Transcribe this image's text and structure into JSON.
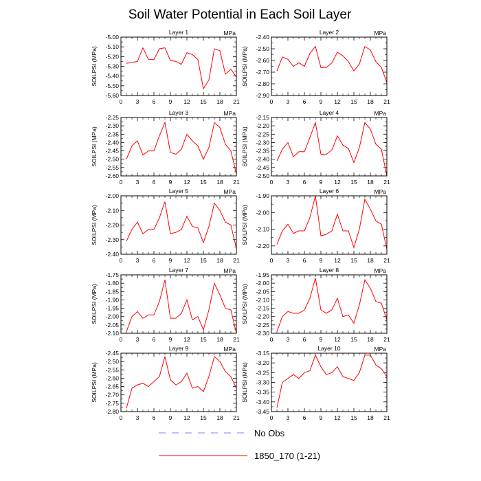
{
  "title": "Soil Water Potential in Each Soil Layer",
  "legend": {
    "no_obs_label": "No Obs",
    "no_obs_color": "#8080ff",
    "series_label": "1850_170 (1-21)",
    "series_color": "#ff0000"
  },
  "chart_data": [
    {
      "type": "line",
      "title": "Layer 1",
      "units": "MPa",
      "ylabel": "SOILPSI  (MPa)",
      "xlim": [
        0,
        21
      ],
      "x_ticks": [
        0,
        3,
        6,
        9,
        12,
        15,
        18,
        21
      ],
      "ylim": [
        -5.6,
        -5.0
      ],
      "y_ticks": [
        -5.0,
        -5.1,
        -5.2,
        -5.3,
        -5.4,
        -5.5,
        -5.6
      ],
      "y_tick_labels": [
        "-5.00",
        "-5.10",
        "-5.20",
        "-5.30",
        "-5.40",
        "-5.50",
        "-5.60"
      ],
      "x": [
        1,
        2,
        3,
        4,
        5,
        6,
        7,
        8,
        9,
        10,
        11,
        12,
        13,
        14,
        15,
        16,
        17,
        18,
        19,
        20,
        21
      ],
      "series": [
        {
          "name": "1850_170 (1-21)",
          "values": [
            -5.27,
            -5.26,
            -5.25,
            -5.11,
            -5.23,
            -5.23,
            -5.12,
            -5.11,
            -5.24,
            -5.25,
            -5.28,
            -5.16,
            -5.18,
            -5.23,
            -5.53,
            -5.44,
            -5.12,
            -5.14,
            -5.38,
            -5.33,
            -5.41
          ]
        }
      ]
    },
    {
      "type": "line",
      "title": "Layer 2",
      "units": "MPa",
      "ylabel": "SOILPSI  (MPa)",
      "xlim": [
        0,
        21
      ],
      "x_ticks": [
        0,
        3,
        6,
        9,
        12,
        15,
        18,
        21
      ],
      "ylim": [
        -2.9,
        -2.4
      ],
      "y_ticks": [
        -2.4,
        -2.5,
        -2.6,
        -2.7,
        -2.8,
        -2.9
      ],
      "y_tick_labels": [
        "-2.40",
        "-2.50",
        "-2.60",
        "-2.70",
        "-2.80",
        "-2.90"
      ],
      "x": [
        1,
        2,
        3,
        4,
        5,
        6,
        7,
        8,
        9,
        10,
        11,
        12,
        13,
        14,
        15,
        16,
        17,
        18,
        19,
        20,
        21
      ],
      "series": [
        {
          "name": "1850_170 (1-21)",
          "values": [
            -2.69,
            -2.57,
            -2.59,
            -2.65,
            -2.62,
            -2.65,
            -2.54,
            -2.48,
            -2.66,
            -2.66,
            -2.62,
            -2.53,
            -2.56,
            -2.61,
            -2.69,
            -2.63,
            -2.48,
            -2.51,
            -2.61,
            -2.66,
            -2.79
          ]
        }
      ]
    },
    {
      "type": "line",
      "title": "Layer 3",
      "units": "MPa",
      "ylabel": "SOILPSI  (MPa)",
      "xlim": [
        0,
        21
      ],
      "x_ticks": [
        0,
        3,
        6,
        9,
        12,
        15,
        18,
        21
      ],
      "ylim": [
        -2.6,
        -2.25
      ],
      "y_ticks": [
        -2.25,
        -2.3,
        -2.35,
        -2.4,
        -2.45,
        -2.5,
        -2.55,
        -2.6
      ],
      "y_tick_labels": [
        "-2.25",
        "-2.30",
        "-2.35",
        "-2.40",
        "-2.45",
        "-2.50",
        "-2.55",
        "-2.60"
      ],
      "x": [
        1,
        2,
        3,
        4,
        5,
        6,
        7,
        8,
        9,
        10,
        11,
        12,
        13,
        14,
        15,
        16,
        17,
        18,
        19,
        20,
        21
      ],
      "series": [
        {
          "name": "1850_170 (1-21)",
          "values": [
            -2.5,
            -2.42,
            -2.39,
            -2.475,
            -2.45,
            -2.45,
            -2.36,
            -2.28,
            -2.46,
            -2.47,
            -2.44,
            -2.35,
            -2.39,
            -2.42,
            -2.5,
            -2.43,
            -2.28,
            -2.31,
            -2.41,
            -2.45,
            -2.59
          ]
        }
      ]
    },
    {
      "type": "line",
      "title": "Layer 4",
      "units": "MPa",
      "ylabel": "SOILPSI  (MPa)",
      "xlim": [
        0,
        21
      ],
      "x_ticks": [
        0,
        3,
        6,
        9,
        12,
        15,
        18,
        21
      ],
      "ylim": [
        -2.5,
        -2.15
      ],
      "y_ticks": [
        -2.15,
        -2.2,
        -2.25,
        -2.3,
        -2.35,
        -2.4,
        -2.45,
        -2.5
      ],
      "y_tick_labels": [
        "-2.15",
        "-2.20",
        "-2.25",
        "-2.30",
        "-2.35",
        "-2.40",
        "-2.45",
        "-2.50"
      ],
      "x": [
        1,
        2,
        3,
        4,
        5,
        6,
        7,
        8,
        9,
        10,
        11,
        12,
        13,
        14,
        15,
        16,
        17,
        18,
        19,
        20,
        21
      ],
      "series": [
        {
          "name": "1850_170 (1-21)",
          "values": [
            -2.41,
            -2.34,
            -2.3,
            -2.385,
            -2.355,
            -2.355,
            -2.27,
            -2.18,
            -2.37,
            -2.37,
            -2.345,
            -2.26,
            -2.315,
            -2.335,
            -2.42,
            -2.33,
            -2.18,
            -2.22,
            -2.31,
            -2.34,
            -2.5
          ]
        }
      ]
    },
    {
      "type": "line",
      "title": "Layer 5",
      "units": "MPa",
      "ylabel": "SOILPSI  (MPa)",
      "xlim": [
        0,
        21
      ],
      "x_ticks": [
        0,
        3,
        6,
        9,
        12,
        15,
        18,
        21
      ],
      "ylim": [
        -2.4,
        -2.0
      ],
      "y_ticks": [
        -2.0,
        -2.1,
        -2.2,
        -2.3,
        -2.4
      ],
      "y_tick_labels": [
        "-2.00",
        "-2.10",
        "-2.20",
        "-2.30",
        "-2.40"
      ],
      "x": [
        1,
        2,
        3,
        4,
        5,
        6,
        7,
        8,
        9,
        10,
        11,
        12,
        13,
        14,
        15,
        16,
        17,
        18,
        19,
        20,
        21
      ],
      "series": [
        {
          "name": "1850_170 (1-21)",
          "values": [
            -2.31,
            -2.23,
            -2.18,
            -2.26,
            -2.23,
            -2.23,
            -2.15,
            -2.04,
            -2.26,
            -2.25,
            -2.23,
            -2.14,
            -2.21,
            -2.22,
            -2.32,
            -2.21,
            -2.05,
            -2.1,
            -2.18,
            -2.2,
            -2.36
          ]
        }
      ]
    },
    {
      "type": "line",
      "title": "Layer 6",
      "units": "MPa",
      "ylabel": "SOILPSI  (MPa)",
      "xlim": [
        0,
        21
      ],
      "x_ticks": [
        0,
        3,
        6,
        9,
        12,
        15,
        18,
        21
      ],
      "ylim": [
        -2.25,
        -1.9
      ],
      "y_ticks": [
        -1.9,
        -2.0,
        -2.1,
        -2.2
      ],
      "y_tick_labels": [
        "-1.90",
        "-2.00",
        "-2.10",
        "-2.20"
      ],
      "x": [
        1,
        2,
        3,
        4,
        5,
        6,
        7,
        8,
        9,
        10,
        11,
        12,
        13,
        14,
        15,
        16,
        17,
        18,
        19,
        20,
        21
      ],
      "series": [
        {
          "name": "1850_170 (1-21)",
          "values": [
            -2.19,
            -2.11,
            -2.07,
            -2.125,
            -2.11,
            -2.11,
            -2.03,
            -1.9,
            -2.14,
            -2.13,
            -2.11,
            -2.01,
            -2.11,
            -2.11,
            -2.21,
            -2.1,
            -1.92,
            -1.98,
            -2.05,
            -2.07,
            -2.22
          ]
        }
      ]
    },
    {
      "type": "line",
      "title": "Layer 7",
      "units": "MPa",
      "ylabel": "SOILPSI  (MPa)",
      "xlim": [
        0,
        21
      ],
      "x_ticks": [
        0,
        3,
        6,
        9,
        12,
        15,
        18,
        21
      ],
      "ylim": [
        -2.1,
        -1.75
      ],
      "y_ticks": [
        -1.75,
        -1.8,
        -1.85,
        -1.9,
        -1.95,
        -2.0,
        -2.05,
        -2.1
      ],
      "y_tick_labels": [
        "-1.75",
        "-1.80",
        "-1.85",
        "-1.90",
        "-1.95",
        "-2.00",
        "-2.05",
        "-2.10"
      ],
      "x": [
        1,
        2,
        3,
        4,
        5,
        6,
        7,
        8,
        9,
        10,
        11,
        12,
        13,
        14,
        15,
        16,
        17,
        18,
        19,
        20,
        21
      ],
      "series": [
        {
          "name": "1850_170 (1-21)",
          "values": [
            -2.09,
            -2.0,
            -1.97,
            -2.01,
            -1.99,
            -1.99,
            -1.91,
            -1.78,
            -2.01,
            -2.01,
            -1.98,
            -1.9,
            -2.02,
            -2.0,
            -2.08,
            -1.96,
            -1.8,
            -1.87,
            -1.95,
            -1.96,
            -2.1
          ]
        }
      ]
    },
    {
      "type": "line",
      "title": "Layer 8",
      "units": "MPa",
      "ylabel": "SOILPSI  (MPa)",
      "xlim": [
        0,
        21
      ],
      "x_ticks": [
        0,
        3,
        6,
        9,
        12,
        15,
        18,
        21
      ],
      "ylim": [
        -2.3,
        -1.95
      ],
      "y_ticks": [
        -1.95,
        -2.0,
        -2.05,
        -2.1,
        -2.15,
        -2.2,
        -2.25,
        -2.3
      ],
      "y_tick_labels": [
        "-1.95",
        "-2.00",
        "-2.05",
        "-2.10",
        "-2.15",
        "-2.20",
        "-2.25",
        "-2.30"
      ],
      "x": [
        1,
        2,
        3,
        4,
        5,
        6,
        7,
        8,
        9,
        10,
        11,
        12,
        13,
        14,
        15,
        16,
        17,
        18,
        19,
        20,
        21
      ],
      "series": [
        {
          "name": "1850_170 (1-21)",
          "values": [
            -2.29,
            -2.2,
            -2.17,
            -2.18,
            -2.18,
            -2.16,
            -2.09,
            -1.97,
            -2.16,
            -2.18,
            -2.16,
            -2.09,
            -2.2,
            -2.19,
            -2.24,
            -2.13,
            -1.98,
            -2.03,
            -2.11,
            -2.12,
            -2.22
          ]
        }
      ]
    },
    {
      "type": "line",
      "title": "Layer 9",
      "units": "MPa",
      "ylabel": "SOILPSI  (MPa)",
      "xlim": [
        0,
        21
      ],
      "x_ticks": [
        0,
        3,
        6,
        9,
        12,
        15,
        18,
        21
      ],
      "ylim": [
        -2.8,
        -2.45
      ],
      "y_ticks": [
        -2.45,
        -2.5,
        -2.55,
        -2.6,
        -2.65,
        -2.7,
        -2.75,
        -2.8
      ],
      "y_tick_labels": [
        "-2.45",
        "-2.50",
        "-2.55",
        "-2.60",
        "-2.65",
        "-2.70",
        "-2.75",
        "-2.80"
      ],
      "x": [
        1,
        2,
        3,
        4,
        5,
        6,
        7,
        8,
        9,
        10,
        11,
        12,
        13,
        14,
        15,
        16,
        17,
        18,
        19,
        20,
        21
      ],
      "series": [
        {
          "name": "1850_170 (1-21)",
          "values": [
            -2.78,
            -2.66,
            -2.64,
            -2.63,
            -2.65,
            -2.62,
            -2.59,
            -2.47,
            -2.61,
            -2.64,
            -2.62,
            -2.57,
            -2.66,
            -2.65,
            -2.68,
            -2.59,
            -2.47,
            -2.5,
            -2.56,
            -2.59,
            -2.66
          ]
        }
      ]
    },
    {
      "type": "line",
      "title": "Layer 10",
      "units": "MPa",
      "ylabel": "SOILPSI  (MPa)",
      "xlim": [
        0,
        21
      ],
      "x_ticks": [
        0,
        3,
        6,
        9,
        12,
        15,
        18,
        21
      ],
      "ylim": [
        -3.45,
        -3.15
      ],
      "y_ticks": [
        -3.15,
        -3.2,
        -3.25,
        -3.3,
        -3.35,
        -3.4,
        -3.45
      ],
      "y_tick_labels": [
        "-3.15",
        "-3.20",
        "-3.25",
        "-3.30",
        "-3.35",
        "-3.40",
        "-3.45"
      ],
      "x": [
        1,
        2,
        3,
        4,
        5,
        6,
        7,
        8,
        9,
        10,
        11,
        12,
        13,
        14,
        15,
        16,
        17,
        18,
        19,
        20,
        21
      ],
      "series": [
        {
          "name": "1850_170 (1-21)",
          "values": [
            -3.43,
            -3.3,
            -3.28,
            -3.26,
            -3.28,
            -3.25,
            -3.24,
            -3.16,
            -3.22,
            -3.26,
            -3.25,
            -3.22,
            -3.27,
            -3.28,
            -3.29,
            -3.25,
            -3.16,
            -3.16,
            -3.21,
            -3.23,
            -3.27
          ]
        }
      ]
    }
  ]
}
